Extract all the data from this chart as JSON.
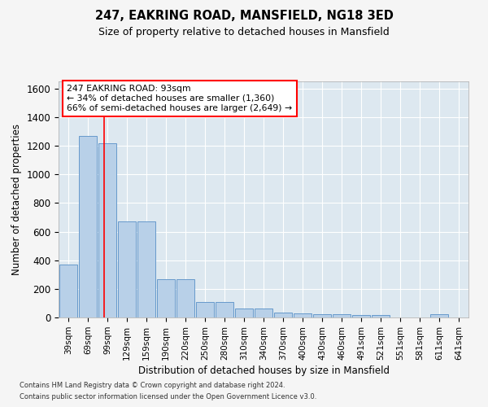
{
  "title1": "247, EAKRING ROAD, MANSFIELD, NG18 3ED",
  "title2": "Size of property relative to detached houses in Mansfield",
  "xlabel": "Distribution of detached houses by size in Mansfield",
  "ylabel": "Number of detached properties",
  "categories": [
    "39sqm",
    "69sqm",
    "99sqm",
    "129sqm",
    "159sqm",
    "190sqm",
    "220sqm",
    "250sqm",
    "280sqm",
    "310sqm",
    "340sqm",
    "370sqm",
    "400sqm",
    "430sqm",
    "460sqm",
    "491sqm",
    "521sqm",
    "551sqm",
    "581sqm",
    "611sqm",
    "641sqm"
  ],
  "values": [
    370,
    1270,
    1220,
    670,
    670,
    265,
    265,
    110,
    110,
    65,
    65,
    35,
    30,
    20,
    20,
    15,
    15,
    0,
    0,
    20,
    0
  ],
  "bar_color": "#b8d0e8",
  "bar_edgecolor": "#6699cc",
  "background_color": "#dde8f0",
  "grid_color": "#ffffff",
  "fig_facecolor": "#f5f5f5",
  "ylim": [
    0,
    1650
  ],
  "yticks": [
    0,
    200,
    400,
    600,
    800,
    1000,
    1200,
    1400,
    1600
  ],
  "red_line_x": 1.83,
  "annotation_title": "247 EAKRING ROAD: 93sqm",
  "annotation_line1": "← 34% of detached houses are smaller (1,360)",
  "annotation_line2": "66% of semi-detached houses are larger (2,649) →",
  "footer1": "Contains HM Land Registry data © Crown copyright and database right 2024.",
  "footer2": "Contains public sector information licensed under the Open Government Licence v3.0."
}
